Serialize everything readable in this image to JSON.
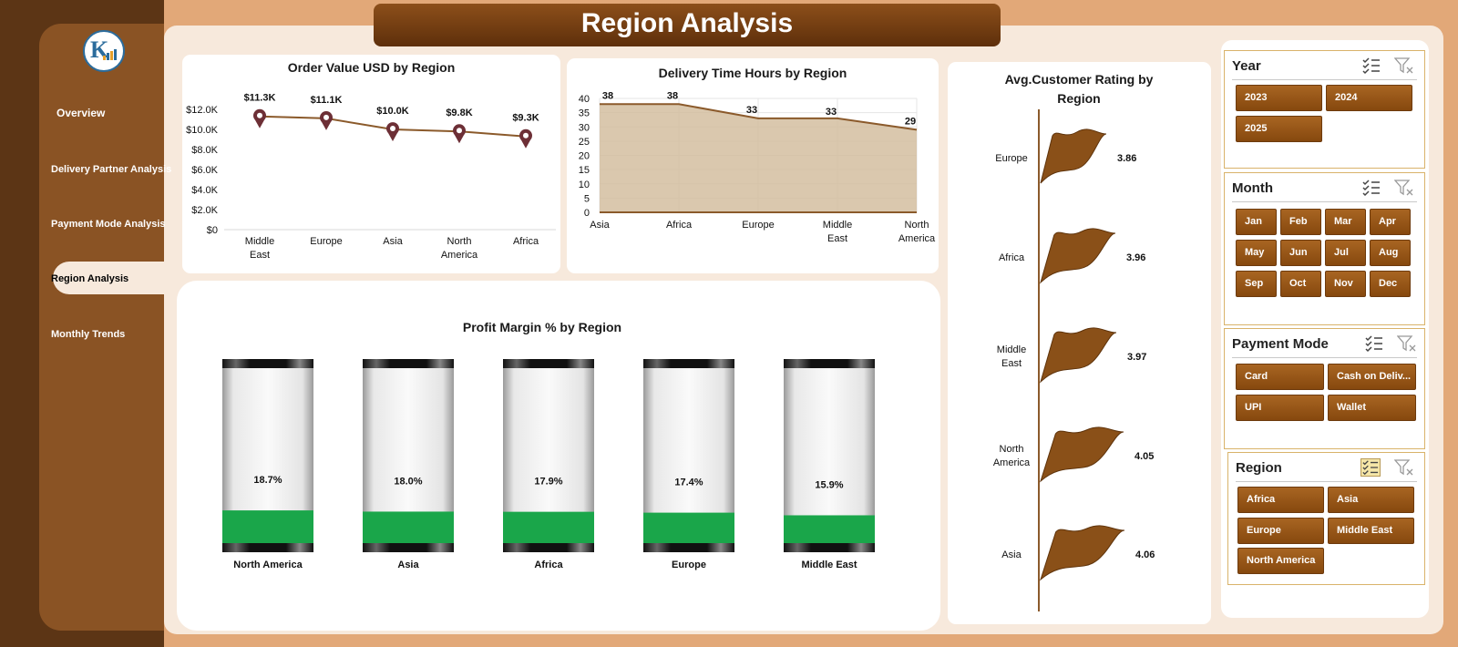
{
  "header": {
    "title": "Region Analysis"
  },
  "sidebar": {
    "items": [
      {
        "label": "Overview"
      },
      {
        "label": "Delivery Partner Analysis"
      },
      {
        "label": "Payment Mode Analysis"
      },
      {
        "label": "Region Analysis",
        "active": true
      },
      {
        "label": "Monthly Trends"
      }
    ]
  },
  "colors": {
    "brand": "#8a5324",
    "dark": "#5c3515",
    "accent_line": "#8b5a2b",
    "profit_fill": "#1aa64a",
    "flag": "#8a5018"
  },
  "chart_data": [
    {
      "type": "line",
      "title": "Order Value USD by Region",
      "categories": [
        "Middle East",
        "Europe",
        "Asia",
        "North America",
        "Africa"
      ],
      "values": [
        11.3,
        11.1,
        10.0,
        9.8,
        9.3
      ],
      "value_labels": [
        "$11.3K",
        "$11.1K",
        "$10.0K",
        "$9.8K",
        "$9.3K"
      ],
      "ylim": [
        0,
        12
      ],
      "yticks": [
        "$0",
        "$2.0K",
        "$4.0K",
        "$6.0K",
        "$8.0K",
        "$10.0K",
        "$12.0K"
      ],
      "unit": "thousand USD",
      "grid": false
    },
    {
      "type": "area",
      "title": "Delivery Time Hours by Region",
      "categories": [
        "Asia",
        "Africa",
        "Europe",
        "Middle East",
        "North America"
      ],
      "values": [
        38,
        38,
        33,
        33,
        29
      ],
      "ylim": [
        0,
        40
      ],
      "yticks": [
        "0",
        "5",
        "10",
        "15",
        "20",
        "25",
        "30",
        "35",
        "40"
      ],
      "grid": true
    },
    {
      "type": "bar",
      "title": "Avg.Customer Rating by Region",
      "categories": [
        "Europe",
        "Africa",
        "Middle East",
        "North America",
        "Asia"
      ],
      "values": [
        3.86,
        3.96,
        3.97,
        4.05,
        4.06
      ],
      "orientation": "horizontal"
    },
    {
      "type": "bar",
      "title": "Profit Margin % by Region",
      "categories": [
        "North America",
        "Asia",
        "Africa",
        "Europe",
        "Middle East"
      ],
      "values": [
        18.7,
        18.0,
        17.9,
        17.4,
        15.9
      ],
      "value_labels": [
        "18.7%",
        "18.0%",
        "17.9%",
        "17.4%",
        "15.9%"
      ],
      "ylim": [
        0,
        100
      ]
    }
  ],
  "slicers": {
    "year": {
      "title": "Year",
      "options": [
        "2023",
        "2024",
        "2025"
      ]
    },
    "month": {
      "title": "Month",
      "options": [
        "Jan",
        "Feb",
        "Mar",
        "Apr",
        "May",
        "Jun",
        "Jul",
        "Aug",
        "Sep",
        "Oct",
        "Nov",
        "Dec"
      ]
    },
    "payment_mode": {
      "title": "Payment Mode",
      "options": [
        "Card",
        "Cash on Deliv...",
        "UPI",
        "Wallet"
      ]
    },
    "region": {
      "title": "Region",
      "options": [
        "Africa",
        "Asia",
        "Europe",
        "Middle East",
        "North America"
      ]
    }
  },
  "icons": {
    "multi_select": "multi-select-icon",
    "clear_filter": "clear-filter-icon"
  }
}
